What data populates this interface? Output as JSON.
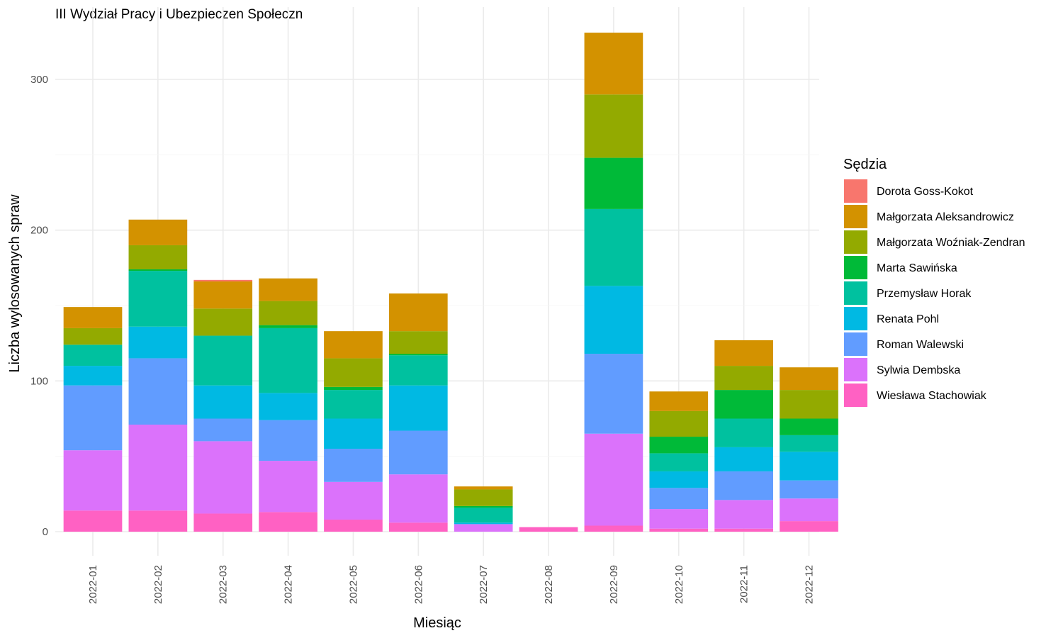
{
  "chart_data": {
    "type": "bar",
    "stacked": true,
    "title": "III Wydział Pracy i Ubezpieczen Społeczn",
    "xlabel": "Miesiąc",
    "ylabel": "Liczba wylosowanych spraw",
    "ylim": [
      -12,
      338
    ],
    "yticks": [
      0,
      100,
      200,
      300
    ],
    "grid": true,
    "legend_position": "right",
    "legend_title": "Sędzia",
    "categories": [
      "2022-01",
      "2022-02",
      "2022-03",
      "2022-04",
      "2022-05",
      "2022-06",
      "2022-07",
      "2022-08",
      "2022-09",
      "2022-10",
      "2022-11",
      "2022-12"
    ],
    "series": [
      {
        "name": "Dorota Goss-Kokot",
        "color": "#F8766D",
        "values": [
          0,
          0,
          1,
          0,
          0,
          0,
          0,
          0,
          0,
          0,
          0,
          0
        ]
      },
      {
        "name": "Małgorzata Aleksandrowicz",
        "color": "#D39200",
        "values": [
          14,
          17,
          18,
          15,
          18,
          25,
          2,
          0,
          41,
          13,
          17,
          15
        ]
      },
      {
        "name": "Małgorzata Woźniak-Zendran",
        "color": "#93AA00",
        "values": [
          11,
          16,
          18,
          16,
          19,
          15,
          11,
          0,
          42,
          17,
          16,
          19
        ]
      },
      {
        "name": "Marta Sawińska",
        "color": "#00BA38",
        "values": [
          0,
          1,
          0,
          2,
          2,
          1,
          1,
          0,
          34,
          11,
          19,
          11
        ]
      },
      {
        "name": "Przemysław Horak",
        "color": "#00C19F",
        "values": [
          14,
          37,
          33,
          43,
          19,
          20,
          10,
          0,
          51,
          12,
          19,
          11
        ]
      },
      {
        "name": "Renata Pohl",
        "color": "#00B9E3",
        "values": [
          13,
          21,
          22,
          18,
          20,
          30,
          1,
          0,
          45,
          11,
          16,
          19
        ]
      },
      {
        "name": "Roman Walewski",
        "color": "#619CFF",
        "values": [
          43,
          44,
          15,
          27,
          22,
          29,
          0,
          0,
          53,
          14,
          19,
          12
        ]
      },
      {
        "name": "Sylwia Dembska",
        "color": "#DB72FB",
        "values": [
          40,
          57,
          48,
          34,
          25,
          32,
          5,
          0,
          61,
          13,
          19,
          15
        ]
      },
      {
        "name": "Wiesława Stachowiak",
        "color": "#FF61C3",
        "values": [
          14,
          14,
          12,
          13,
          8,
          6,
          0,
          3,
          4,
          2,
          2,
          7
        ]
      }
    ]
  }
}
